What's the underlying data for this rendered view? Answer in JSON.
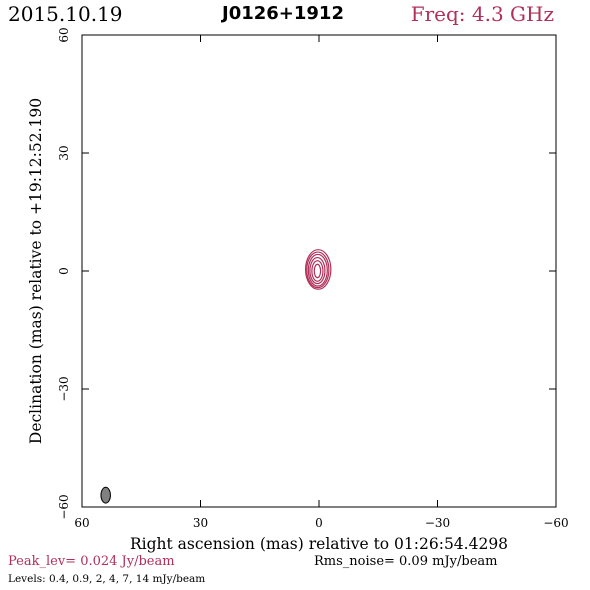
{
  "header": {
    "date": "2015.10.19",
    "source": "J0126+1912",
    "frequency": "Freq: 4.3 GHz"
  },
  "chart_data": {
    "type": "contour",
    "xlabel": "Right ascension (mas) relative to 01:26:54.4298",
    "ylabel": "Declination (mas) relative to +19:12:52.190",
    "xlim": [
      60,
      -60
    ],
    "ylim": [
      -60,
      60
    ],
    "x_ticks": [
      60,
      30,
      0,
      -30,
      -60
    ],
    "y_ticks": [
      60,
      30,
      0,
      -30,
      -60
    ],
    "x_tick_labels": [
      "60",
      "30",
      "0",
      "−30",
      "−60"
    ],
    "y_tick_labels": [
      "60",
      "30",
      "0",
      "−30",
      "−60"
    ],
    "contour_color": "#b0305a",
    "contours": [
      {
        "level": 0.4,
        "center": [
          0.2,
          0.4
        ],
        "a": 3.2,
        "b": 5.0
      },
      {
        "level": 0.9,
        "center": [
          0.3,
          0.3
        ],
        "a": 2.8,
        "b": 4.5
      },
      {
        "level": 2,
        "center": [
          0.3,
          0.2
        ],
        "a": 2.4,
        "b": 4.0
      },
      {
        "level": 4,
        "center": [
          0.4,
          0.1
        ],
        "a": 1.9,
        "b": 3.3
      },
      {
        "level": 7,
        "center": [
          0.4,
          0.0
        ],
        "a": 1.4,
        "b": 2.6
      },
      {
        "level": 14,
        "center": [
          0.4,
          0.0
        ],
        "a": 0.8,
        "b": 1.7
      }
    ],
    "beam": {
      "center": [
        54,
        -57
      ],
      "a": 1.2,
      "b": 2.0,
      "color": "#808080"
    },
    "peak_text": "Peak_lev=  0.024 Jy/beam",
    "rms_text": "Rms_noise= 0.09 mJy/beam",
    "levels_text": "Levels: 0.4, 0.9,   2,   4,   7,  14 mJy/beam"
  }
}
